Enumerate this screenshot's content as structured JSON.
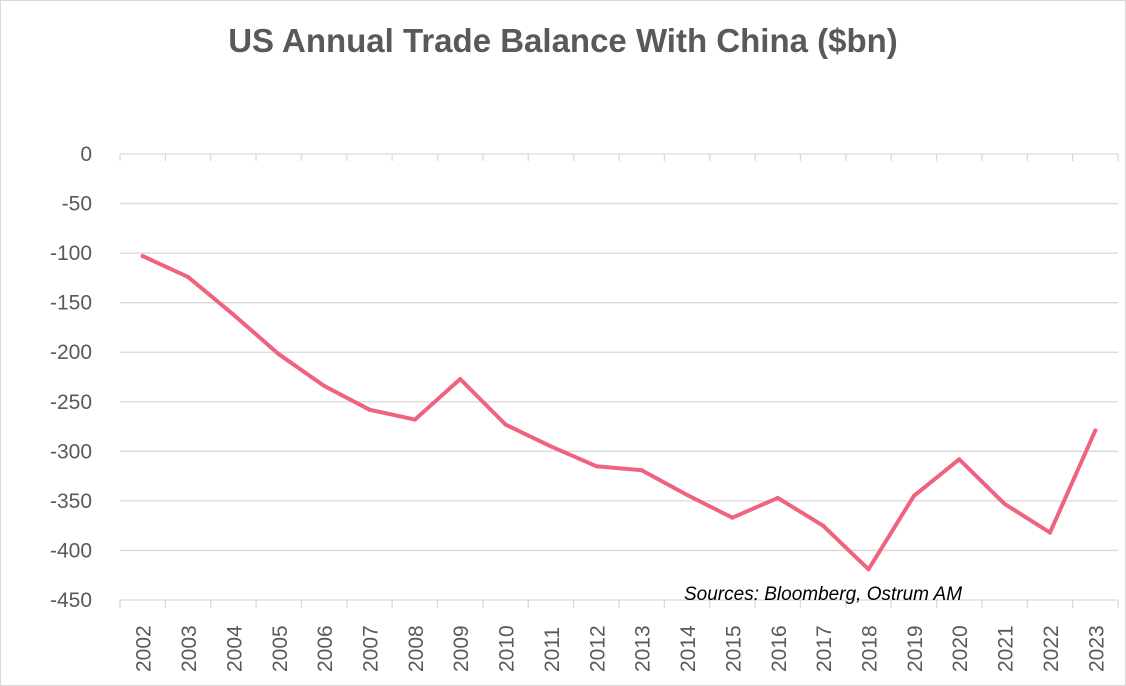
{
  "chart_data": {
    "type": "line",
    "title": "US Annual Trade Balance With China ($bn)",
    "annotation": "Sources: Bloomberg, Ostrum AM",
    "xlabel": "",
    "ylabel": "",
    "ylim": [
      -450,
      0
    ],
    "yticks": [
      0,
      -50,
      -100,
      -150,
      -200,
      -250,
      -300,
      -350,
      -400,
      -450
    ],
    "grid": true,
    "legend": "none",
    "categories": [
      "2002",
      "2003",
      "2004",
      "2005",
      "2006",
      "2007",
      "2008",
      "2009",
      "2010",
      "2011",
      "2012",
      "2013",
      "2014",
      "2015",
      "2016",
      "2017",
      "2018",
      "2019",
      "2020",
      "2021",
      "2022",
      "2023"
    ],
    "series": [
      {
        "color": "#f0637e",
        "values": [
          -103,
          -124,
          -162,
          -202,
          -234,
          -258,
          -268,
          -227,
          -273,
          -295,
          -315,
          -319,
          -344,
          -367,
          -347,
          -375,
          -419,
          -345,
          -308,
          -353,
          -382,
          -279
        ]
      }
    ]
  },
  "colors": {
    "grid": "#d9d9d9",
    "text": "#595959"
  }
}
